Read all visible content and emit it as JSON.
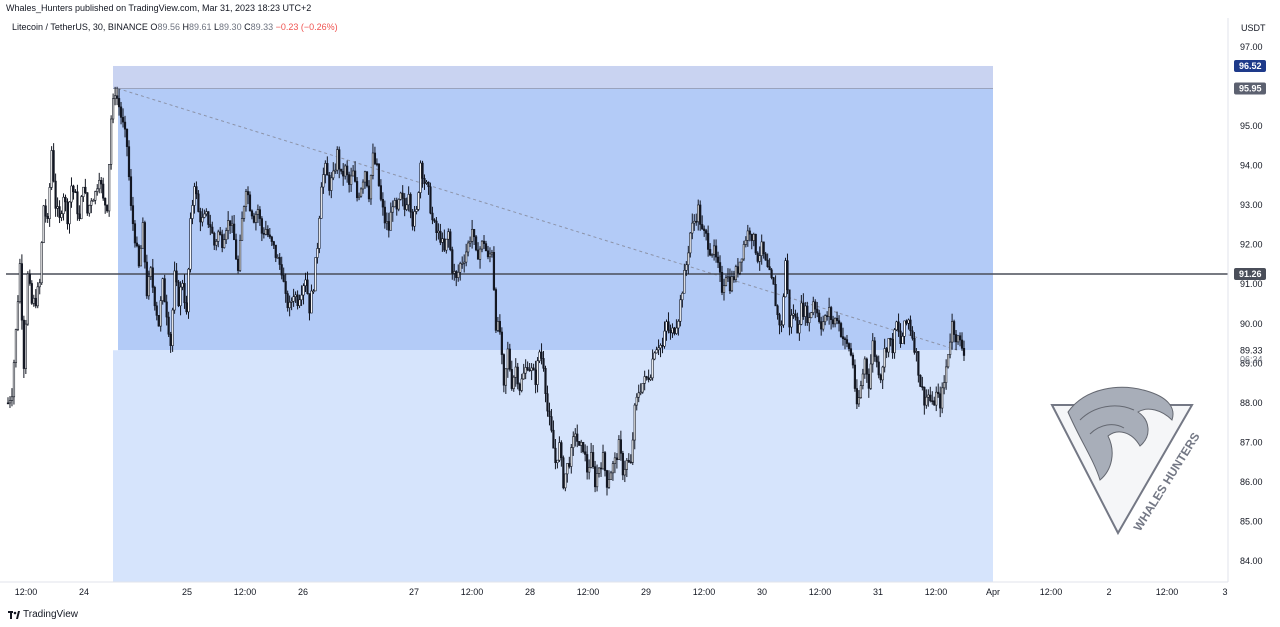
{
  "header": {
    "published": "Whales_Hunters published on TradingView.com, Mar 31, 2023 18:23 UTC+2"
  },
  "legend": {
    "symbol": "Litecoin / TetherUS, 30, BINANCE",
    "open_label": "O",
    "open": "89.56",
    "high_label": "H",
    "high": "89.61",
    "low_label": "L",
    "low": "89.30",
    "close_label": "C",
    "close": "89.33",
    "change": "−0.23 (−0.26%)"
  },
  "branding": {
    "label": "TradingView",
    "icon": "tradingview-logo-icon"
  },
  "watermark": {
    "text": "WHALES HUNTERS",
    "icon": "whale-wave-triangle-logo"
  },
  "colors": {
    "candle": "#131722",
    "zone_top": "#c9d3f1",
    "zone_mid": "#b3cbf7",
    "zone_low": "#d6e4fc",
    "hline": "#4a4e59",
    "trendline": "#8c93a8",
    "badge_top": "#1e3a8a",
    "badge_current": "#5c6170",
    "badge_hline": "#4a4e59"
  },
  "chart_data": {
    "type": "candlestick",
    "title": "Litecoin / TetherUS, 30, BINANCE",
    "currency": "USDT",
    "y_ticks": [
      "97.00",
      "96.00",
      "95.00",
      "94.00",
      "93.00",
      "92.00",
      "91.00",
      "90.00",
      "89.00",
      "88.00",
      "87.00",
      "86.00",
      "85.00",
      "84.00"
    ],
    "x_ticks": [
      "12:00",
      "24",
      "25",
      "12:00",
      "26",
      "27",
      "12:00",
      "28",
      "12:00",
      "29",
      "12:00",
      "30",
      "12:00",
      "31",
      "12:00",
      "Apr",
      "12:00",
      "2",
      "12:00",
      "3"
    ],
    "ylim": [
      83.6,
      97.5
    ],
    "price_labels": {
      "zone_top": "96.52",
      "trend_start": "95.95",
      "horizontal_line": "91.26",
      "current": "89.33",
      "countdown": "06:34"
    },
    "zones": [
      {
        "name": "upper-zone",
        "from": 95.95,
        "to": 96.52
      },
      {
        "name": "range-zone",
        "from": 89.33,
        "to": 95.95
      },
      {
        "name": "lower-zone",
        "from": 83.6,
        "to": 89.33
      }
    ],
    "horizontal_line": 91.26,
    "trendline": {
      "from_price": 95.95,
      "to_price": 89.33
    },
    "price_path": [
      [
        0,
        88.0
      ],
      [
        4,
        88.3
      ],
      [
        8,
        89.8
      ],
      [
        12,
        91.5
      ],
      [
        16,
        89.0
      ],
      [
        20,
        91.2
      ],
      [
        24,
        90.5
      ],
      [
        28,
        90.6
      ],
      [
        32,
        91.0
      ],
      [
        36,
        93.0
      ],
      [
        40,
        92.5
      ],
      [
        44,
        94.4
      ],
      [
        48,
        93.0
      ],
      [
        52,
        92.6
      ],
      [
        56,
        93.3
      ],
      [
        60,
        92.7
      ],
      [
        64,
        93.5
      ],
      [
        68,
        93.2
      ],
      [
        72,
        92.6
      ],
      [
        76,
        93.6
      ],
      [
        80,
        92.8
      ],
      [
        84,
        93.2
      ],
      [
        88,
        93.3
      ],
      [
        92,
        93.8
      ],
      [
        96,
        93.1
      ],
      [
        100,
        93.0
      ],
      [
        104,
        95.2
      ],
      [
        108,
        95.9
      ],
      [
        112,
        95.5
      ],
      [
        116,
        95.0
      ],
      [
        120,
        94.5
      ],
      [
        124,
        92.9
      ],
      [
        128,
        92.2
      ],
      [
        132,
        91.4
      ],
      [
        136,
        92.4
      ],
      [
        140,
        90.8
      ],
      [
        144,
        91.3
      ],
      [
        148,
        90.6
      ],
      [
        152,
        90.0
      ],
      [
        156,
        91.0
      ],
      [
        160,
        90.3
      ],
      [
        164,
        89.5
      ],
      [
        168,
        91.2
      ],
      [
        172,
        90.6
      ],
      [
        176,
        91.1
      ],
      [
        180,
        90.2
      ],
      [
        184,
        92.5
      ],
      [
        188,
        93.6
      ],
      [
        192,
        92.8
      ],
      [
        196,
        92.6
      ],
      [
        200,
        92.7
      ],
      [
        204,
        92.5
      ],
      [
        208,
        92.0
      ],
      [
        212,
        92.3
      ],
      [
        216,
        92.1
      ],
      [
        220,
        92.5
      ],
      [
        224,
        92.6
      ],
      [
        228,
        92.1
      ],
      [
        232,
        91.3
      ],
      [
        236,
        92.6
      ],
      [
        240,
        93.5
      ],
      [
        244,
        93.0
      ],
      [
        248,
        92.7
      ],
      [
        252,
        92.9
      ],
      [
        256,
        92.3
      ],
      [
        260,
        92.4
      ],
      [
        264,
        92.1
      ],
      [
        268,
        91.9
      ],
      [
        272,
        91.6
      ],
      [
        276,
        91.4
      ],
      [
        280,
        90.6
      ],
      [
        284,
        90.4
      ],
      [
        288,
        90.8
      ],
      [
        292,
        90.6
      ],
      [
        296,
        90.9
      ],
      [
        300,
        91.2
      ],
      [
        304,
        90.4
      ],
      [
        308,
        91.0
      ],
      [
        312,
        92.0
      ],
      [
        316,
        93.6
      ],
      [
        320,
        93.9
      ],
      [
        324,
        93.5
      ],
      [
        328,
        93.7
      ],
      [
        332,
        94.3
      ],
      [
        336,
        93.7
      ],
      [
        340,
        93.9
      ],
      [
        344,
        93.5
      ],
      [
        348,
        93.8
      ],
      [
        352,
        93.2
      ],
      [
        356,
        93.5
      ],
      [
        360,
        93.9
      ],
      [
        364,
        93.3
      ],
      [
        368,
        94.2
      ],
      [
        372,
        93.9
      ],
      [
        376,
        93.1
      ],
      [
        380,
        92.6
      ],
      [
        384,
        92.4
      ],
      [
        388,
        93.1
      ],
      [
        392,
        92.8
      ],
      [
        396,
        93.2
      ],
      [
        400,
        92.9
      ],
      [
        404,
        93.4
      ],
      [
        408,
        92.6
      ],
      [
        412,
        92.8
      ],
      [
        416,
        94.1
      ],
      [
        420,
        93.6
      ],
      [
        424,
        93.3
      ],
      [
        428,
        92.6
      ],
      [
        432,
        92.3
      ],
      [
        436,
        92.2
      ],
      [
        440,
        91.8
      ],
      [
        444,
        92.3
      ],
      [
        448,
        91.4
      ],
      [
        452,
        91.1
      ],
      [
        456,
        91.5
      ],
      [
        460,
        91.7
      ],
      [
        464,
        92.0
      ],
      [
        468,
        92.4
      ],
      [
        472,
        91.7
      ],
      [
        476,
        91.9
      ],
      [
        480,
        92.1
      ],
      [
        484,
        91.6
      ],
      [
        488,
        91.9
      ],
      [
        492,
        90.0
      ],
      [
        496,
        89.8
      ],
      [
        500,
        88.3
      ],
      [
        504,
        89.3
      ],
      [
        508,
        88.5
      ],
      [
        512,
        88.9
      ],
      [
        516,
        88.4
      ],
      [
        520,
        88.7
      ],
      [
        524,
        89.0
      ],
      [
        528,
        88.8
      ],
      [
        532,
        88.6
      ],
      [
        536,
        89.3
      ],
      [
        540,
        89.0
      ],
      [
        544,
        87.8
      ],
      [
        548,
        87.2
      ],
      [
        552,
        86.5
      ],
      [
        556,
        86.9
      ],
      [
        560,
        86.0
      ],
      [
        564,
        86.4
      ],
      [
        568,
        86.7
      ],
      [
        572,
        87.3
      ],
      [
        576,
        86.8
      ],
      [
        580,
        86.9
      ],
      [
        584,
        86.3
      ],
      [
        588,
        86.6
      ],
      [
        592,
        86.0
      ],
      [
        596,
        86.4
      ],
      [
        600,
        86.6
      ],
      [
        604,
        86.0
      ],
      [
        608,
        86.3
      ],
      [
        612,
        86.5
      ],
      [
        616,
        86.9
      ],
      [
        620,
        86.3
      ],
      [
        624,
        86.5
      ],
      [
        628,
        86.4
      ],
      [
        632,
        87.8
      ],
      [
        636,
        88.3
      ],
      [
        640,
        88.5
      ],
      [
        644,
        88.6
      ],
      [
        648,
        88.8
      ],
      [
        652,
        89.4
      ],
      [
        656,
        89.5
      ],
      [
        660,
        89.4
      ],
      [
        664,
        90.0
      ],
      [
        668,
        89.7
      ],
      [
        672,
        89.9
      ],
      [
        676,
        90.2
      ],
      [
        680,
        90.9
      ],
      [
        684,
        91.5
      ],
      [
        688,
        92.3
      ],
      [
        692,
        92.6
      ],
      [
        696,
        92.9
      ],
      [
        700,
        92.3
      ],
      [
        704,
        92.2
      ],
      [
        708,
        91.9
      ],
      [
        712,
        91.8
      ],
      [
        716,
        91.4
      ],
      [
        720,
        90.9
      ],
      [
        724,
        91.3
      ],
      [
        728,
        91.0
      ],
      [
        732,
        91.2
      ],
      [
        736,
        91.4
      ],
      [
        740,
        91.8
      ],
      [
        744,
        92.2
      ],
      [
        748,
        92.4
      ],
      [
        752,
        92.1
      ],
      [
        756,
        91.7
      ],
      [
        760,
        91.9
      ],
      [
        764,
        91.5
      ],
      [
        768,
        91.2
      ],
      [
        772,
        90.9
      ],
      [
        776,
        90.2
      ],
      [
        780,
        89.9
      ],
      [
        784,
        91.6
      ],
      [
        788,
        90.0
      ],
      [
        792,
        90.3
      ],
      [
        796,
        89.9
      ],
      [
        800,
        90.4
      ],
      [
        804,
        90.3
      ],
      [
        808,
        90.1
      ],
      [
        812,
        90.6
      ],
      [
        816,
        90.3
      ],
      [
        820,
        90.0
      ],
      [
        824,
        90.1
      ],
      [
        828,
        90.3
      ],
      [
        832,
        90.0
      ],
      [
        836,
        90.2
      ],
      [
        840,
        89.8
      ],
      [
        844,
        89.5
      ],
      [
        848,
        89.4
      ],
      [
        852,
        89.0
      ],
      [
        856,
        87.8
      ],
      [
        860,
        88.4
      ],
      [
        864,
        89.1
      ],
      [
        868,
        88.5
      ],
      [
        872,
        89.5
      ],
      [
        876,
        89.0
      ],
      [
        880,
        88.7
      ],
      [
        884,
        89.3
      ],
      [
        888,
        89.6
      ],
      [
        892,
        89.4
      ],
      [
        896,
        90.0
      ],
      [
        900,
        89.5
      ],
      [
        904,
        89.9
      ],
      [
        908,
        90.1
      ],
      [
        912,
        89.7
      ],
      [
        916,
        89.2
      ],
      [
        920,
        88.5
      ],
      [
        924,
        88.1
      ],
      [
        928,
        88.2
      ],
      [
        932,
        87.9
      ],
      [
        936,
        88.2
      ],
      [
        940,
        88.0
      ],
      [
        944,
        88.5
      ],
      [
        948,
        89.3
      ],
      [
        952,
        90.0
      ],
      [
        956,
        89.7
      ],
      [
        960,
        89.5
      ],
      [
        964,
        89.33
      ]
    ]
  }
}
